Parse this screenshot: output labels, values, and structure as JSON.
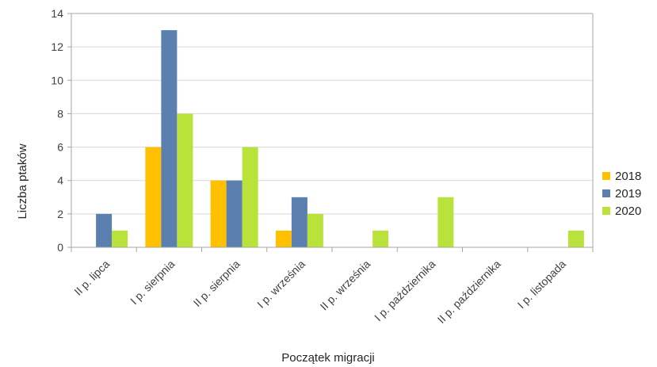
{
  "chart_data": {
    "type": "bar",
    "xlabel": "Początek migracji",
    "ylabel": "Liczba ptaków",
    "ylim": [
      0,
      14
    ],
    "yticks": [
      0,
      2,
      4,
      6,
      8,
      10,
      12,
      14
    ],
    "grid": true,
    "legend": "right",
    "categories": [
      "II p. lipca",
      "I p. sierpnia",
      "II p. sierpnia",
      "I p. września",
      "II p. września",
      "I p. października",
      "II p. października",
      "I p. listopada"
    ],
    "series": [
      {
        "name": "2018",
        "color": "#FFC000",
        "values": [
          0,
          6,
          4,
          1,
          0,
          0,
          0,
          0
        ]
      },
      {
        "name": "2019",
        "color": "#5B7FAE",
        "values": [
          2,
          13,
          4,
          3,
          0,
          0,
          0,
          0
        ]
      },
      {
        "name": "2020",
        "color": "#B9E23B",
        "values": [
          1,
          8,
          6,
          2,
          1,
          3,
          0,
          1
        ]
      }
    ]
  }
}
